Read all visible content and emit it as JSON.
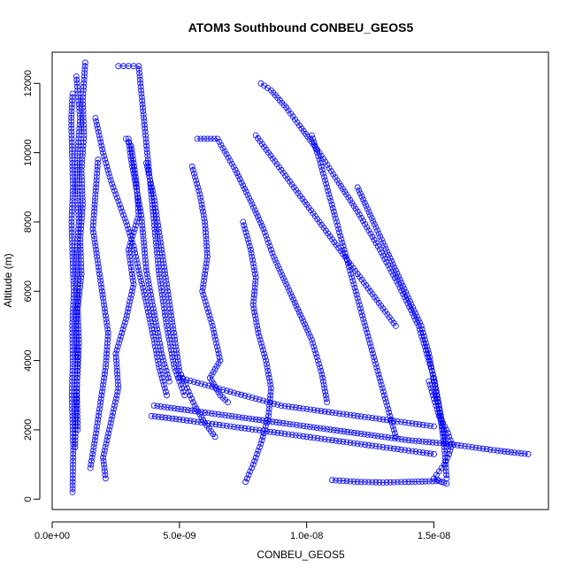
{
  "chart_data": {
    "type": "scatter",
    "title": "ATOM3 Southbound CONBEU_GEOS5",
    "xlabel": "CONBEU_GEOS5",
    "ylabel": "Altitude (m)",
    "xlim": [
      0,
      1.95e-08
    ],
    "ylim": [
      -300,
      12900
    ],
    "x_ticks": [
      0,
      5e-09,
      1e-08,
      1.5e-08
    ],
    "x_tick_labels": [
      "0.0e+00",
      "5.0e-09",
      "1.0e-08",
      "1.5e-08"
    ],
    "y_ticks": [
      0,
      2000,
      4000,
      6000,
      8000,
      10000,
      12000
    ],
    "y_tick_labels": [
      "0",
      "2000",
      "4000",
      "6000",
      "8000",
      "10000",
      "12000"
    ],
    "grid": false,
    "marker": "open-circle",
    "line_connected": true,
    "color": "#0000ff",
    "series": [
      {
        "x": [
          8e-10,
          7.5e-10,
          7.8e-10,
          8.2e-10,
          7.6e-10,
          8e-10,
          8.5e-10,
          7.9e-10,
          8.1e-10,
          7.7e-10,
          8.3e-10,
          8e-10
        ],
        "y": [
          11700,
          11000,
          10000,
          9000,
          8000,
          7000,
          6000,
          5000,
          4000,
          3000,
          1500,
          200
        ]
      },
      {
        "x": [
          9.5e-10,
          1.1e-09,
          1e-09,
          9.8e-10,
          1.05e-09,
          9.6e-10,
          1e-09,
          9.4e-10,
          9.9e-10,
          9.7e-10,
          1e-09
        ],
        "y": [
          12200,
          11000,
          10000,
          9000,
          8000,
          7000,
          6000,
          5000,
          4000,
          3000,
          2000
        ]
      },
      {
        "x": [
          1.3e-09,
          1.2e-09,
          1.25e-09,
          1.15e-09,
          1.2e-09,
          1.1e-09,
          1.15e-09,
          1e-09,
          1.05e-09,
          9.5e-10,
          9e-10
        ],
        "y": [
          12600,
          11500,
          10500,
          9500,
          8500,
          7500,
          6500,
          5500,
          4500,
          3000,
          1500
        ]
      },
      {
        "x": [
          1.7e-09,
          2e-09,
          2.3e-09,
          2.6e-09,
          2.9e-09,
          3.2e-09,
          3.4e-09,
          3.6e-09,
          3.8e-09,
          4e-09,
          4.2e-09,
          4.5e-09
        ],
        "y": [
          11000,
          10000,
          9200,
          8600,
          8000,
          7300,
          6600,
          6000,
          5300,
          4600,
          3800,
          3000
        ]
      },
      {
        "x": [
          2.6e-09,
          2.8e-09,
          3e-09,
          3.2e-09,
          3.4e-09,
          3.6e-09,
          3.8e-09,
          4e-09,
          4.2e-09,
          4.5e-09,
          4.8e-09,
          5.2e-09
        ],
        "y": [
          12500,
          12500,
          12500,
          12500,
          12500,
          11000,
          9500,
          8000,
          6500,
          5000,
          3800,
          3000
        ]
      },
      {
        "x": [
          2.1e-09,
          2e-09,
          2.3e-09,
          2.6e-09,
          2.5e-09,
          2.9e-09,
          3.2e-09,
          3e-09,
          3.4e-09,
          3.3e-09,
          3.1e-09,
          2.9e-09
        ],
        "y": [
          600,
          1200,
          2200,
          3200,
          4200,
          5200,
          6200,
          7200,
          8200,
          9200,
          10200,
          10400
        ]
      },
      {
        "x": [
          3e-09,
          3.1e-09,
          3.3e-09,
          3.5e-09,
          3.6e-09,
          3.7e-09,
          3.9e-09,
          4.1e-09,
          4.3e-09,
          4.6e-09
        ],
        "y": [
          10400,
          9800,
          9000,
          8200,
          7400,
          6600,
          5800,
          5000,
          4200,
          3400
        ]
      },
      {
        "x": [
          5.5e-09,
          5.8e-09,
          6e-09,
          6.1e-09,
          5.9e-09,
          6.3e-09,
          6.6e-09,
          6.2e-09,
          6.6e-09,
          6.9e-09
        ],
        "y": [
          9600,
          8800,
          8000,
          7000,
          6000,
          5000,
          4000,
          3500,
          3000,
          2800
        ]
      },
      {
        "x": [
          5.7e-09,
          6.5e-09,
          7.2e-09,
          7.8e-09,
          8.3e-09,
          8.7e-09,
          9.2e-09,
          9.7e-09,
          1.02e-08,
          1.06e-08,
          1.08e-08
        ],
        "y": [
          10400,
          10400,
          9500,
          8600,
          7800,
          7000,
          6200,
          5400,
          4600,
          3600,
          2800
        ]
      },
      {
        "x": [
          8.2e-09,
          8.6e-09,
          9.2e-09,
          9.8e-09,
          1.05e-08,
          1.12e-08,
          1.2e-08,
          1.28e-08,
          1.36e-08,
          1.44e-08,
          1.5e-08,
          1.55e-08
        ],
        "y": [
          12000,
          11800,
          11300,
          10700,
          10000,
          9200,
          8300,
          7300,
          6200,
          5000,
          3500,
          1500
        ]
      },
      {
        "x": [
          8e-09,
          8.5e-09,
          9e-09,
          9.5e-09,
          1e-08,
          1.05e-08,
          1.1e-08,
          1.15e-08,
          1.2e-08,
          1.25e-08,
          1.3e-08,
          1.35e-08
        ],
        "y": [
          10500,
          10000,
          9500,
          9000,
          8500,
          8000,
          7500,
          7000,
          6500,
          6000,
          5500,
          5000
        ]
      },
      {
        "x": [
          1.02e-08,
          1.05e-08,
          1.08e-08,
          1.11e-08,
          1.14e-08,
          1.17e-08,
          1.2e-08,
          1.23e-08,
          1.26e-08,
          1.29e-08,
          1.32e-08,
          1.35e-08
        ],
        "y": [
          10500,
          9800,
          9000,
          8200,
          7400,
          6600,
          5800,
          5000,
          4200,
          3400,
          2600,
          1800
        ]
      },
      {
        "x": [
          7.5e-09,
          7.8e-09,
          8e-09,
          7.9e-09,
          8.1e-09,
          8.4e-09,
          8.6e-09,
          8.5e-09,
          8.2e-09,
          7.9e-09,
          7.6e-09
        ],
        "y": [
          8000,
          7200,
          6400,
          5600,
          4800,
          4000,
          3200,
          2400,
          1600,
          1000,
          500
        ]
      },
      {
        "x": [
          1.2e-08,
          1.25e-08,
          1.3e-08,
          1.35e-08,
          1.4e-08,
          1.45e-08,
          1.48e-08,
          1.5e-08,
          1.52e-08,
          1.54e-08,
          1.55e-08
        ],
        "y": [
          9000,
          8200,
          7400,
          6600,
          5800,
          5000,
          4200,
          3400,
          2600,
          1600,
          600
        ]
      },
      {
        "x": [
          3.9e-09,
          5e-09,
          6e-09,
          7e-09,
          8e-09,
          9e-09,
          1e-08,
          1.1e-08,
          1.2e-08,
          1.3e-08,
          1.4e-08,
          1.5e-08
        ],
        "y": [
          2400,
          2300,
          2200,
          2100,
          2000,
          1900,
          1800,
          1700,
          1600,
          1500,
          1400,
          1300
        ]
      },
      {
        "x": [
          4e-09,
          6e-09,
          8e-09,
          1e-08,
          1.2e-08,
          1.4e-08,
          1.55e-08,
          1.65e-08,
          1.75e-08,
          1.87e-08
        ],
        "y": [
          2700,
          2500,
          2300,
          2100,
          1900,
          1700,
          1600,
          1500,
          1400,
          1300
        ]
      },
      {
        "x": [
          5e-09,
          6e-09,
          7e-09,
          8e-09,
          9e-09,
          1e-08,
          1.1e-08,
          1.2e-08,
          1.3e-08,
          1.4e-08,
          1.5e-08
        ],
        "y": [
          3500,
          3300,
          3100,
          2900,
          2700,
          2600,
          2500,
          2400,
          2300,
          2200,
          2100
        ]
      },
      {
        "x": [
          1.1e-08,
          1.2e-08,
          1.3e-08,
          1.4e-08,
          1.52e-08
        ],
        "y": [
          550,
          500,
          480,
          500,
          520
        ]
      },
      {
        "x": [
          1.48e-08,
          1.5e-08,
          1.52e-08,
          1.55e-08,
          1.57e-08,
          1.56e-08,
          1.54e-08,
          1.52e-08,
          1.5e-08,
          1.53e-08,
          1.55e-08
        ],
        "y": [
          3400,
          2900,
          2400,
          2000,
          1600,
          1300,
          1000,
          800,
          600,
          500,
          450
        ]
      },
      {
        "x": [
          1.8e-09,
          1.7e-09,
          1.6e-09,
          1.8e-09,
          2e-09,
          2.2e-09,
          2.1e-09,
          1.9e-09,
          1.7e-09,
          1.5e-09
        ],
        "y": [
          9800,
          8800,
          7800,
          6800,
          5800,
          4800,
          3800,
          2800,
          1800,
          900
        ]
      },
      {
        "x": [
          3.7e-09,
          4e-09,
          4.2e-09,
          4.4e-09,
          4.6e-09,
          4.8e-09,
          5e-09,
          5.3e-09,
          5.6e-09,
          6e-09,
          6.4e-09
        ],
        "y": [
          9700,
          8700,
          7700,
          6700,
          5700,
          4700,
          3700,
          3200,
          2700,
          2200,
          1800
        ]
      }
    ]
  }
}
